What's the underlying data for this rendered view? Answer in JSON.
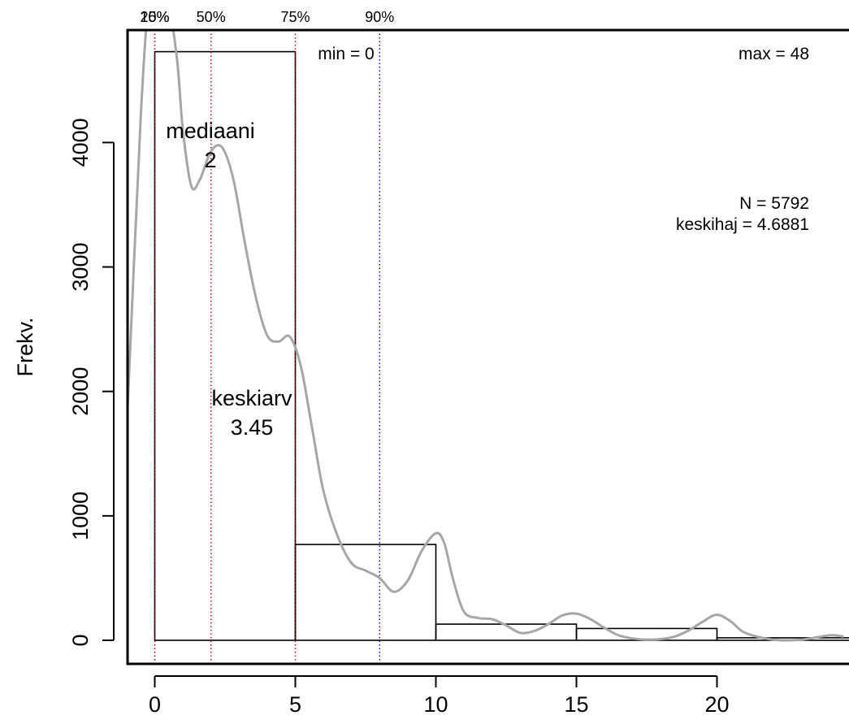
{
  "chart_data": {
    "type": "bar",
    "title": "",
    "xlabel": "",
    "ylabel": "Frekv.",
    "xlim": [
      -1,
      24.5
    ],
    "ylim": [
      -230,
      4800
    ],
    "x_ticks": [
      0,
      5,
      10,
      15,
      20
    ],
    "y_ticks": [
      0,
      1000,
      2000,
      3000,
      4000
    ],
    "bins": [
      {
        "x0": 0,
        "x1": 5,
        "count": 4730
      },
      {
        "x0": 5,
        "x1": 10,
        "count": 770
      },
      {
        "x0": 10,
        "x1": 15,
        "count": 130
      },
      {
        "x0": 15,
        "x1": 20,
        "count": 95
      },
      {
        "x0": 20,
        "x1": 25,
        "count": 20
      }
    ],
    "density_curve": {
      "x": [
        -1.0,
        -0.5,
        -0.2,
        0.0,
        0.2,
        0.5,
        0.8,
        1.0,
        1.3,
        1.6,
        2.0,
        2.4,
        2.8,
        3.2,
        3.6,
        4.0,
        4.4,
        4.8,
        5.2,
        5.6,
        6.0,
        6.5,
        7.0,
        7.5,
        8.0,
        8.5,
        9.0,
        9.5,
        10.0,
        10.3,
        10.6,
        11.0,
        11.5,
        12.0,
        12.5,
        13.0,
        13.5,
        14.0,
        14.5,
        15.0,
        15.5,
        16.0,
        16.5,
        17.0,
        17.5,
        18.0,
        18.5,
        19.0,
        19.5,
        20.0,
        20.5,
        21.0,
        22.0,
        23.0,
        24.0,
        24.5
      ],
      "y": [
        1700,
        4200,
        5200,
        5300,
        5200,
        5100,
        4650,
        4100,
        3650,
        3700,
        3930,
        3960,
        3700,
        3200,
        2750,
        2450,
        2400,
        2440,
        2200,
        1700,
        1200,
        840,
        620,
        560,
        500,
        390,
        480,
        720,
        860,
        780,
        500,
        230,
        180,
        170,
        120,
        60,
        75,
        130,
        200,
        215,
        170,
        100,
        40,
        15,
        5,
        10,
        30,
        80,
        150,
        205,
        150,
        60,
        5,
        5,
        40,
        30
      ]
    },
    "quantile_lines": [
      {
        "label": "10%",
        "x": 0,
        "color": "#0000cc"
      },
      {
        "label": "25%",
        "x": 0,
        "color": "#cc0000"
      },
      {
        "label": "50%",
        "x": 2,
        "color": "#cc0000"
      },
      {
        "label": "75%",
        "x": 5,
        "color": "#cc0000"
      },
      {
        "label": "90%",
        "x": 8,
        "color": "#0000cc"
      }
    ],
    "annotations": {
      "median_label": "mediaani",
      "median_value": "2",
      "mean_label": "keskiarv",
      "mean_value": "3.45",
      "min_text": "min = 0",
      "max_text": "max = 48",
      "n_text": "N = 5792",
      "sd_text": "keskihaj = 4.6881"
    },
    "colors": {
      "bars_stroke": "#000000",
      "curve": "#a6a6a6",
      "axis": "#000000"
    }
  }
}
